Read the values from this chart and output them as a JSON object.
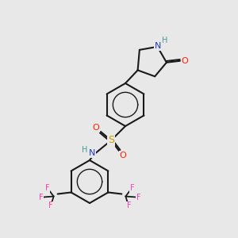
{
  "bg_color": "#e8e8e8",
  "bond_color": "#1a1a1a",
  "atom_colors": {
    "N": "#1E3FBF",
    "O": "#FF2000",
    "S": "#C8A000",
    "F": "#FF40B0",
    "H": "#4A9A9A",
    "C": "#1a1a1a"
  },
  "figsize": [
    3.0,
    3.0
  ],
  "dpi": 100
}
